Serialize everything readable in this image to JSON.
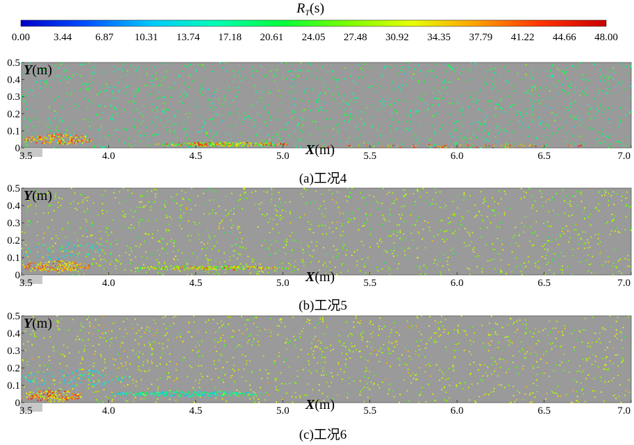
{
  "colorbar": {
    "title": "R",
    "title_sub": "T",
    "title_unit": "(s)",
    "min": 0,
    "max": 48,
    "tick_labels": [
      "0.00",
      "3.44",
      "6.87",
      "10.31",
      "13.74",
      "17.18",
      "20.61",
      "24.05",
      "27.48",
      "30.92",
      "34.35",
      "37.79",
      "41.22",
      "44.66",
      "48.00"
    ],
    "colors": [
      "#0000c8",
      "#0050ff",
      "#00c8ff",
      "#00ffb4",
      "#00ff3c",
      "#78ff00",
      "#e6ff00",
      "#ffa000",
      "#ff3200",
      "#c80000"
    ]
  },
  "colors": {
    "plot_background": "#9a9a9a",
    "inlet_block": "#c8c8c8"
  },
  "chart_data": [
    {
      "type": "scatter",
      "caption": "(a)工况4",
      "x_axis_title_var": "X",
      "x_axis_title_unit": "(m)",
      "y_axis_title_var": "Y",
      "y_axis_title_unit": "(m)",
      "xlim": [
        3.5,
        7.0
      ],
      "ylim": [
        0,
        0.5
      ],
      "x_tick_labels": [
        "3.5",
        "4.0",
        "4.5",
        "5.0",
        "5.5",
        "6.0",
        "6.5",
        "7.0"
      ],
      "y_tick_labels": [
        "0",
        "0.1",
        "0.2",
        "0.3",
        "0.4",
        "0.5"
      ],
      "inlet_x_end": 3.62,
      "background_particle_count": 1300,
      "background_rt_mean": 20,
      "clusters": [
        {
          "x_center": 3.72,
          "y_center": 0.05,
          "x_radius": 0.2,
          "y_radius": 0.03,
          "rt_min": 30,
          "rt_max": 44,
          "count": 150
        },
        {
          "x_center": 4.65,
          "y_center": 0.02,
          "x_radius": 0.38,
          "y_radius": 0.012,
          "rt_min": 20,
          "rt_max": 46,
          "count": 240
        },
        {
          "x_center": 6.0,
          "y_center": 0.01,
          "x_radius": 0.8,
          "y_radius": 0.01,
          "rt_min": 34,
          "rt_max": 46,
          "count": 70
        }
      ]
    },
    {
      "type": "scatter",
      "caption": "(b)工况5",
      "x_axis_title_var": "X",
      "x_axis_title_unit": "(m)",
      "y_axis_title_var": "Y",
      "y_axis_title_unit": "(m)",
      "xlim": [
        3.5,
        7.0
      ],
      "ylim": [
        0,
        0.5
      ],
      "x_tick_labels": [
        "3.5",
        "4.0",
        "4.5",
        "5.0",
        "5.5",
        "6.0",
        "6.5",
        "7.0"
      ],
      "y_tick_labels": [
        "0",
        "0.1",
        "0.2",
        "0.3",
        "0.4",
        "0.5"
      ],
      "inlet_x_end": 3.62,
      "background_particle_count": 1200,
      "background_rt_mean": 28,
      "clusters": [
        {
          "x_center": 3.7,
          "y_center": 0.05,
          "x_radius": 0.2,
          "y_radius": 0.03,
          "rt_min": 30,
          "rt_max": 44,
          "count": 160
        },
        {
          "x_center": 4.6,
          "y_center": 0.04,
          "x_radius": 0.45,
          "y_radius": 0.012,
          "rt_min": 20,
          "rt_max": 44,
          "count": 220
        },
        {
          "x_center": 3.75,
          "y_center": 0.14,
          "x_radius": 0.3,
          "y_radius": 0.05,
          "rt_min": 10,
          "rt_max": 18,
          "count": 60
        }
      ]
    },
    {
      "type": "scatter",
      "caption": "(c)工况6",
      "x_axis_title_var": "X",
      "x_axis_title_unit": "(m)",
      "y_axis_title_var": "Y",
      "y_axis_title_unit": "(m)",
      "xlim": [
        3.5,
        7.0
      ],
      "ylim": [
        0,
        0.5
      ],
      "x_tick_labels": [
        "3.5",
        "4.0",
        "4.5",
        "5.0",
        "5.5",
        "6.0",
        "6.5",
        "7.0"
      ],
      "y_tick_labels": [
        "0",
        "0.1",
        "0.2",
        "0.3",
        "0.4",
        "0.5"
      ],
      "inlet_x_end": 3.62,
      "background_particle_count": 1200,
      "background_rt_mean": 30,
      "clusters": [
        {
          "x_center": 3.68,
          "y_center": 0.04,
          "x_radius": 0.18,
          "y_radius": 0.03,
          "rt_min": 28,
          "rt_max": 46,
          "count": 160
        },
        {
          "x_center": 4.45,
          "y_center": 0.05,
          "x_radius": 0.45,
          "y_radius": 0.015,
          "rt_min": 10,
          "rt_max": 22,
          "count": 200
        },
        {
          "x_center": 3.8,
          "y_center": 0.14,
          "x_radius": 0.32,
          "y_radius": 0.05,
          "rt_min": 10,
          "rt_max": 16,
          "count": 80
        }
      ]
    }
  ]
}
